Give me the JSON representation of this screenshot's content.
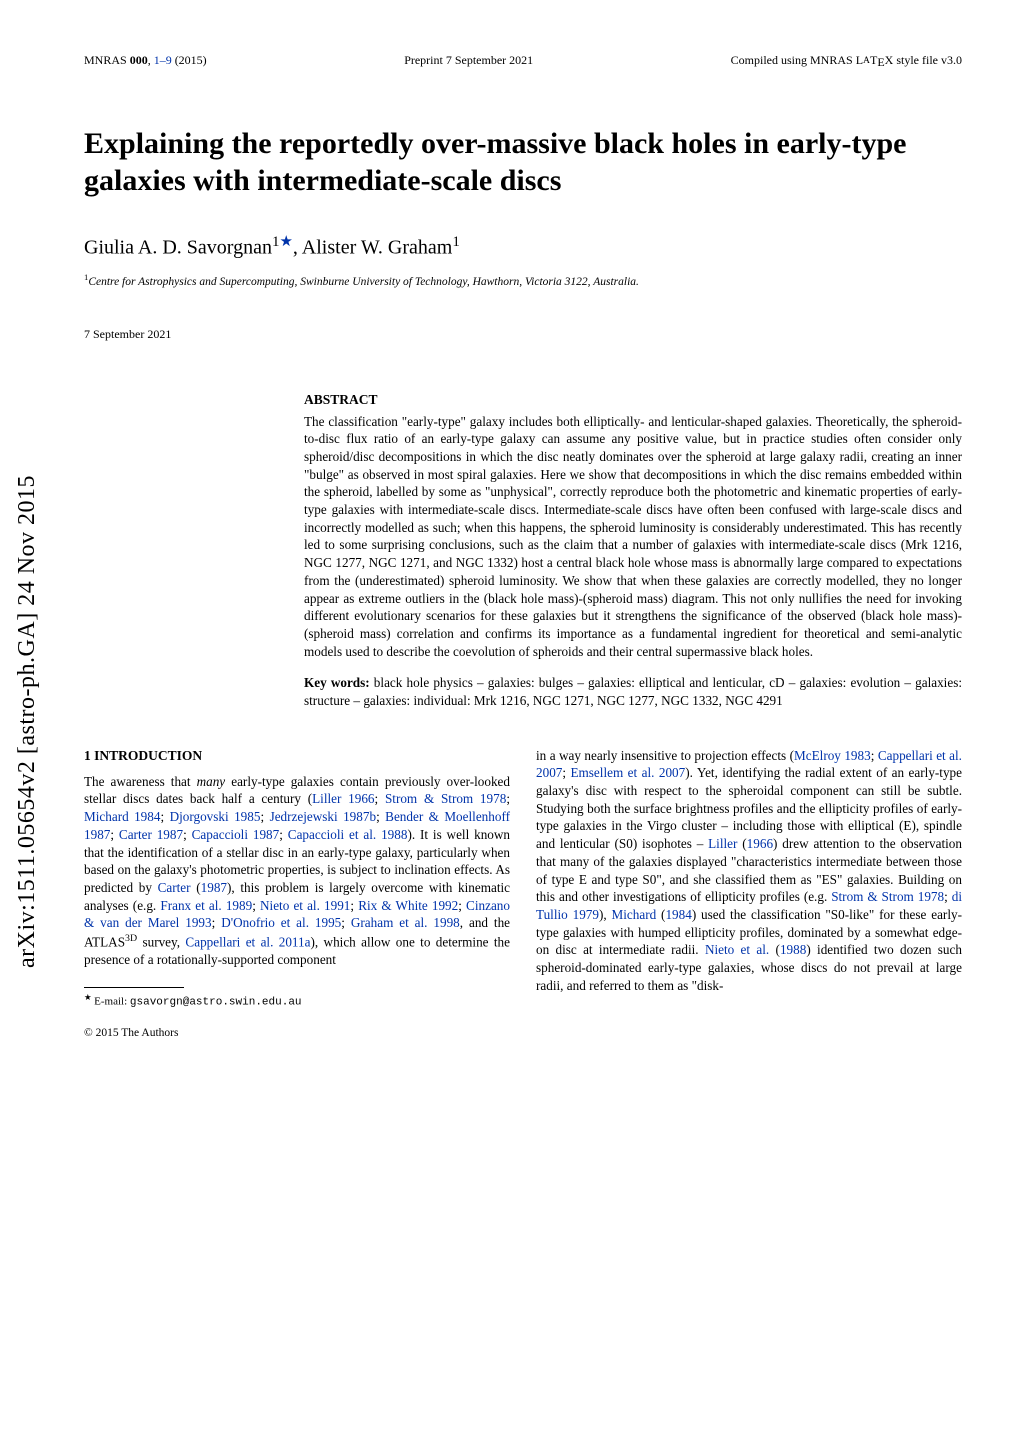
{
  "arxiv": "arXiv:1511.05654v2  [astro-ph.GA]  24 Nov 2015",
  "header": {
    "left_pre": "MNRAS ",
    "left_bold": "000",
    "left_post": ", ",
    "left_pages": "1–9",
    "left_year": " (2015)",
    "center": "Preprint 7 September 2021",
    "right_pre": "Compiled using MNRAS L",
    "right_a": "A",
    "right_post": "T",
    "right_e": "E",
    "right_end": "X style file v3.0"
  },
  "title": "Explaining the reportedly over-massive black holes in early-type galaxies with intermediate-scale discs",
  "authors_html": "Giulia A. D. Savorgnan",
  "author_sup": "1",
  "author_star": "★",
  "author2": ", Alister W. Graham",
  "author2_sup": "1",
  "affiliation_sup": "1",
  "affiliation": "Centre for Astrophysics and Supercomputing, Swinburne University of Technology, Hawthorn, Victoria 3122, Australia.",
  "date": "7 September 2021",
  "abstract_heading": "ABSTRACT",
  "abstract": "The classification \"early-type\" galaxy includes both elliptically- and lenticular-shaped galaxies. Theoretically, the spheroid-to-disc flux ratio of an early-type galaxy can assume any positive value, but in practice studies often consider only spheroid/disc decompositions in which the disc neatly dominates over the spheroid at large galaxy radii, creating an inner \"bulge\" as observed in most spiral galaxies. Here we show that decompositions in which the disc remains embedded within the spheroid, labelled by some as \"unphysical\", correctly reproduce both the photometric and kinematic properties of early-type galaxies with intermediate-scale discs. Intermediate-scale discs have often been confused with large-scale discs and incorrectly modelled as such; when this happens, the spheroid luminosity is considerably underestimated. This has recently led to some surprising conclusions, such as the claim that a number of galaxies with intermediate-scale discs (Mrk 1216, NGC 1277, NGC 1271, and NGC 1332) host a central black hole whose mass is abnormally large compared to expectations from the (underestimated) spheroid luminosity. We show that when these galaxies are correctly modelled, they no longer appear as extreme outliers in the (black hole mass)-(spheroid mass) diagram. This not only nullifies the need for invoking different evolutionary scenarios for these galaxies but it strengthens the significance of the observed (black hole mass)-(spheroid mass) correlation and confirms its importance as a fundamental ingredient for theoretical and semi-analytic models used to describe the coevolution of spheroids and their central supermassive black holes.",
  "keywords_label": "Key words:",
  "keywords": " black hole physics – galaxies: bulges – galaxies: elliptical and lenticular, cD – galaxies: evolution – galaxies: structure – galaxies: individual: Mrk 1216, NGC 1271, NGC 1277, NGC 1332, NGC 4291",
  "section1_heading": "1   INTRODUCTION",
  "col1_p1_a": "The awareness that ",
  "col1_p1_many": "many",
  "col1_p1_b": " early-type galaxies contain previously over-looked stellar discs dates back half a century (",
  "c_liller": "Liller 1966",
  "col1_p1_c": "; ",
  "c_strom": "Strom & Strom 1978",
  "col1_p1_d": "; ",
  "c_michard": "Michard 1984",
  "col1_p1_e": "; ",
  "c_djorg": "Djorgovski 1985",
  "col1_p1_f": "; ",
  "c_jedr": "Jedrzejewski 1987b",
  "col1_p1_g": "; ",
  "c_bender": "Bender & Moellenhoff 1987",
  "col1_p1_h": "; ",
  "c_carter": "Carter 1987",
  "col1_p1_i": "; ",
  "c_capac": "Capaccioli 1987",
  "col1_p1_j": "; ",
  "c_capac88": "Capaccioli et al. 1988",
  "col1_p1_k": "). It is well known that the identification of a stellar disc in an early-type galaxy, particularly when based on the galaxy's photometric properties, is subject to inclination effects. As predicted by ",
  "c_carter2": "Carter",
  "col1_p1_l": " (",
  "c_carter2_year": "1987",
  "col1_p1_m": "), this problem is largely overcome with kinematic analyses (e.g. ",
  "c_franx": "Franx et al. 1989",
  "col1_p1_n": "; ",
  "c_nieto91": "Nieto et al. 1991",
  "col1_p1_o": "; ",
  "c_rix": "Rix & White 1992",
  "col1_p1_p": "; ",
  "c_cinzano": "Cinzano & van der Marel 1993",
  "col1_p1_q": "; ",
  "c_donofrio": "D'Onofrio et al. 1995",
  "col1_p1_r": "; ",
  "c_graham98": "Graham et al. 1998",
  "col1_p1_s": ", and the ATLAS",
  "col1_p1_3d": "3D",
  "col1_p1_t": " survey, ",
  "c_capp11": "Cappellari et al. 2011a",
  "col1_p1_u": "), which allow one to determine the presence of a rotationally-supported component",
  "footnote_star": "★",
  "footnote_label": " E-mail: ",
  "footnote_email": "gsavorgn@astro.swin.edu.au",
  "copyright": "© 2015 The Authors",
  "col2_p1_a": "in a way nearly insensitive to projection effects (",
  "c_mcelroy": "McElroy 1983",
  "col2_p1_b": "; ",
  "c_capp07": "Cappellari et al. 2007",
  "col2_p1_c": "; ",
  "c_ems07": "Emsellem et al. 2007",
  "col2_p1_d": "). Yet, identifying the radial extent of an early-type galaxy's disc with respect to the spheroidal component can still be subtle. Studying both the surface brightness profiles and the ellipticity profiles of early-type galaxies in the Virgo cluster – including those with elliptical (E), spindle and lenticular (S0) isophotes – ",
  "c_liller2": "Liller",
  "col2_p1_e": " (",
  "c_liller2_year": "1966",
  "col2_p1_f": ") drew attention to the observation that many of the galaxies displayed \"characteristics intermediate between those of type E and type S0\", and she classified them as \"ES\" galaxies. Building on this and other investigations of ellipticity profiles (e.g. ",
  "c_strom2": "Strom & Strom 1978",
  "col2_p1_g": "; ",
  "c_ditullio": "di Tullio 1979",
  "col2_p1_h": "), ",
  "c_michard2": "Michard",
  "col2_p1_i": " (",
  "c_michard2_year": "1984",
  "col2_p1_j": ") used the classification \"S0-like\" for these early-type galaxies with humped ellipticity profiles, dominated by a somewhat edge-on disc at intermediate radii. ",
  "c_nieto88": "Nieto et al.",
  "col2_p1_k": " (",
  "c_nieto88_year": "1988",
  "col2_p1_l": ") identified two dozen such spheroid-dominated early-type galaxies, whose discs do not prevail at large radii, and referred to them as \"disk-"
}
